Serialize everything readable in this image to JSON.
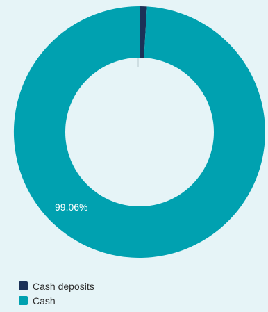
{
  "chart_data": {
    "type": "pie",
    "title": "",
    "categories": [
      "Cash deposits",
      "Cash"
    ],
    "values": [
      0.94,
      99.06
    ],
    "colors": [
      "#1c3157",
      "#00a1b0"
    ],
    "data_labels": [
      {
        "category": "Cash",
        "text": "99.06%"
      }
    ],
    "legend_placement": "bottom-left"
  },
  "legend": {
    "items": [
      {
        "label": "Cash deposits",
        "color": "#1c3157"
      },
      {
        "label": "Cash",
        "color": "#00a1b0"
      }
    ]
  },
  "colors": {
    "background": "#e6f4f7",
    "hole": "#e6f4f7",
    "label_text": "#ffffff"
  }
}
